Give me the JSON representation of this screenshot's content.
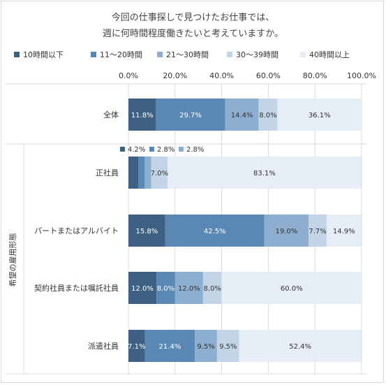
{
  "title_line1": "今回の仕事探しで見つけたお仕事では、",
  "title_line2": "週に何時間程度働きたいと考えていますか。",
  "group_label": "希望の雇用形態",
  "colors": [
    "#3e6083",
    "#5a88b4",
    "#8eaed0",
    "#c3d4e6",
    "#e6edf5"
  ],
  "chart_data": {
    "type": "bar",
    "orientation": "horizontal",
    "stacked": true,
    "categories": [
      "全体",
      "正社員",
      "パートまたはアルバイト",
      "契約社員または嘱託社員",
      "派遣社員"
    ],
    "series": [
      {
        "name": "10時間以下",
        "values": [
          11.8,
          4.2,
          15.8,
          12.0,
          7.1
        ],
        "labels": [
          "11.8%",
          "4.2%",
          "15.8%",
          "12.0%",
          "7.1%"
        ]
      },
      {
        "name": "11～20時間",
        "values": [
          29.7,
          2.8,
          42.5,
          8.0,
          21.4
        ],
        "labels": [
          "29.7%",
          "2.8%",
          "42.5%",
          "8.0%",
          "21.4%"
        ]
      },
      {
        "name": "21～30時間",
        "values": [
          14.4,
          2.8,
          19.0,
          12.0,
          9.5
        ],
        "labels": [
          "14.4%",
          "2.8%",
          "19.0%",
          "12.0%",
          "9.5%"
        ]
      },
      {
        "name": "30～39時間",
        "values": [
          8.0,
          7.0,
          7.7,
          8.0,
          9.5
        ],
        "labels": [
          "8.0%",
          "7.0%",
          "7.7%",
          "8.0%",
          "9.5%"
        ]
      },
      {
        "name": "40時間以上",
        "values": [
          36.1,
          83.1,
          14.9,
          60.0,
          52.4
        ],
        "labels": [
          "36.1%",
          "83.1%",
          "14.9%",
          "60.0%",
          "52.4%"
        ]
      }
    ],
    "xlim": [
      0,
      100
    ],
    "xticks": [
      "0.0%",
      "20.0%",
      "40.0%",
      "60.0%",
      "80.0%",
      "100.0%"
    ],
    "legend_position": "top",
    "grid": true
  }
}
